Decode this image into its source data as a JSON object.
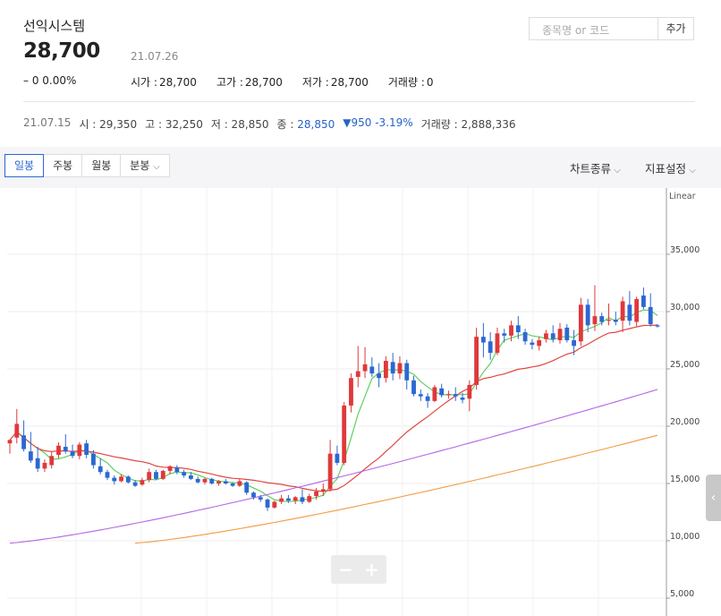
{
  "stock": {
    "name": "선익시스템",
    "price": "28,700",
    "date": "21.07.26",
    "change": "– 0  0.00%",
    "stats": [
      {
        "label": "시가 :",
        "value": "28,700"
      },
      {
        "label": "고가 :",
        "value": "28,700"
      },
      {
        "label": "저가 :",
        "value": "28,700"
      },
      {
        "label": "거래량 :",
        "value": "0"
      }
    ]
  },
  "search": {
    "placeholder": "종목명 or 코드",
    "add_label": "추가"
  },
  "prev_day": {
    "date": "21.07.15",
    "open": "시 : 29,350",
    "high": "고 : 32,250",
    "low": "저 : 28,850",
    "close_label": "종 :",
    "close": "28,850",
    "diff": "▼950 -3.19%",
    "volume": "거래량 : 2,888,336"
  },
  "toolbar": {
    "tabs": [
      "일봉",
      "주봉",
      "월봉",
      "분봉"
    ],
    "chart_type": "차트종류",
    "indicator": "지표설정"
  },
  "colors": {
    "up": "#e0383b",
    "down": "#2b68d1",
    "ma5": "#5fcf5f",
    "ma20": "#e0473f",
    "ma60": "#b266e8",
    "ma120": "#f39a42"
  },
  "chart_data": {
    "type": "candlestick",
    "scale_label": "Linear",
    "y_ticks": [
      5000,
      10000,
      15000,
      20000,
      25000,
      30000,
      35000
    ],
    "y_tick_labels": [
      "5,000",
      "10,000",
      "15,000",
      "20,000",
      "25,000",
      "30,000",
      "35,000"
    ],
    "ylim": [
      5000,
      40000
    ],
    "candles": [
      [
        18500,
        18800,
        17600,
        18800
      ],
      [
        19000,
        21500,
        18500,
        20200
      ],
      [
        19200,
        20500,
        17800,
        18000
      ],
      [
        17800,
        19500,
        16800,
        17000
      ],
      [
        17200,
        18200,
        16000,
        16300
      ],
      [
        16300,
        17100,
        16000,
        16800
      ],
      [
        16600,
        17800,
        16300,
        17400
      ],
      [
        17500,
        18600,
        17200,
        18300
      ],
      [
        18200,
        19300,
        17600,
        17800
      ],
      [
        17800,
        18400,
        17200,
        17400
      ],
      [
        17400,
        18600,
        17100,
        18400
      ],
      [
        18500,
        18800,
        17200,
        17500
      ],
      [
        17600,
        17900,
        16300,
        16600
      ],
      [
        16500,
        17200,
        15800,
        16000
      ],
      [
        16000,
        16200,
        15300,
        15500
      ],
      [
        15500,
        15700,
        14900,
        15200
      ],
      [
        15200,
        15800,
        15100,
        15600
      ],
      [
        15600,
        15700,
        15000,
        15100
      ],
      [
        15100,
        15300,
        14700,
        14800
      ],
      [
        14900,
        15500,
        14800,
        15300
      ],
      [
        15300,
        16300,
        15100,
        16000
      ],
      [
        16000,
        16200,
        15300,
        15400
      ],
      [
        15400,
        16200,
        15300,
        16100
      ],
      [
        16100,
        16600,
        15800,
        16500
      ],
      [
        16400,
        16600,
        15800,
        16000
      ],
      [
        16000,
        16200,
        15500,
        15700
      ],
      [
        15700,
        16000,
        15300,
        15400
      ],
      [
        15400,
        15600,
        15000,
        15100
      ],
      [
        15100,
        15500,
        14900,
        15400
      ],
      [
        15400,
        15500,
        14900,
        15000
      ],
      [
        15000,
        15300,
        14800,
        15200
      ],
      [
        15200,
        15400,
        14900,
        15000
      ],
      [
        15000,
        15100,
        14700,
        14800
      ],
      [
        14800,
        15400,
        14700,
        15200
      ],
      [
        15100,
        15200,
        14000,
        14200
      ],
      [
        14200,
        14300,
        13600,
        13800
      ],
      [
        13800,
        14000,
        13400,
        13600
      ],
      [
        13600,
        13700,
        12600,
        12900
      ],
      [
        12900,
        13500,
        12800,
        13400
      ],
      [
        13400,
        14000,
        13200,
        13700
      ],
      [
        13700,
        14000,
        13300,
        13500
      ],
      [
        13500,
        13900,
        13200,
        13800
      ],
      [
        13800,
        14500,
        13200,
        13400
      ],
      [
        13400,
        14100,
        13300,
        13900
      ],
      [
        13900,
        14600,
        13600,
        14300
      ],
      [
        14300,
        15000,
        13900,
        14500
      ],
      [
        14500,
        18800,
        14300,
        17600
      ],
      [
        17600,
        18300,
        16600,
        16800
      ],
      [
        16800,
        22100,
        16600,
        21800
      ],
      [
        21800,
        24600,
        21200,
        24200
      ],
      [
        24300,
        27000,
        23400,
        24800
      ],
      [
        24800,
        26900,
        24200,
        25400
      ],
      [
        25200,
        26000,
        24300,
        24600
      ],
      [
        24600,
        25500,
        23400,
        24200
      ],
      [
        24200,
        26100,
        23800,
        25700
      ],
      [
        25600,
        26400,
        24000,
        24600
      ],
      [
        24600,
        26100,
        24100,
        25500
      ],
      [
        25500,
        25800,
        23200,
        24000
      ],
      [
        24000,
        24400,
        22600,
        22800
      ],
      [
        22800,
        23200,
        22200,
        22600
      ],
      [
        22600,
        22900,
        21600,
        22200
      ],
      [
        22200,
        23600,
        22100,
        23400
      ],
      [
        23300,
        23700,
        22500,
        22700
      ],
      [
        22700,
        23100,
        22400,
        22800
      ],
      [
        22800,
        23400,
        22200,
        22600
      ],
      [
        22500,
        22900,
        22000,
        22300
      ],
      [
        22400,
        24000,
        21300,
        23600
      ],
      [
        23600,
        28600,
        23200,
        27800
      ],
      [
        27800,
        29000,
        26000,
        27300
      ],
      [
        27400,
        28200,
        25800,
        26400
      ],
      [
        26400,
        28600,
        26200,
        28100
      ],
      [
        28100,
        28500,
        27300,
        27900
      ],
      [
        27900,
        29200,
        27400,
        28800
      ],
      [
        28800,
        29600,
        27600,
        28200
      ],
      [
        28200,
        28500,
        27100,
        27400
      ],
      [
        27300,
        27600,
        26700,
        27100
      ],
      [
        27000,
        27800,
        26600,
        27500
      ],
      [
        27600,
        28400,
        27300,
        28100
      ],
      [
        28100,
        28800,
        27300,
        27600
      ],
      [
        27500,
        29000,
        27200,
        28500
      ],
      [
        28600,
        28900,
        27300,
        27500
      ],
      [
        27500,
        28400,
        26200,
        27000
      ],
      [
        27400,
        31200,
        27000,
        30600
      ],
      [
        30600,
        31100,
        28200,
        28800
      ],
      [
        28900,
        32300,
        28300,
        29600
      ],
      [
        29600,
        29900,
        28800,
        29100
      ],
      [
        29200,
        30700,
        28800,
        29300
      ],
      [
        29300,
        30000,
        28800,
        29100
      ],
      [
        29200,
        31300,
        28200,
        30900
      ],
      [
        30600,
        31800,
        28800,
        29200
      ],
      [
        29100,
        31300,
        28700,
        31100
      ],
      [
        31400,
        32100,
        30200,
        30400
      ],
      [
        30400,
        31600,
        28700,
        28900
      ],
      [
        28800,
        28900,
        28600,
        28700
      ]
    ],
    "ma5": [
      15800,
      16900,
      17800,
      18300,
      18600,
      18900,
      19000,
      19100,
      19000,
      18800,
      18500,
      18000,
      17600,
      17200,
      16900,
      16700,
      16400,
      16200,
      16000,
      15800
    ],
    "ma20": [
      13000,
      13700,
      14300,
      14800,
      15200,
      15700,
      16000,
      16300,
      16500,
      16700,
      16800,
      16900,
      16900,
      16800,
      16700,
      16600,
      16400,
      16200,
      16000,
      15800
    ],
    "ma60": [
      9800,
      10200,
      10600,
      11000,
      11400,
      11800,
      12100,
      12400,
      12700,
      13000,
      13300,
      13500,
      13700,
      13900,
      14100,
      14300,
      14500,
      14600,
      14700,
      14900
    ],
    "ma120": [
      null,
      null,
      null,
      null,
      null,
      null,
      null,
      null,
      null,
      null,
      9800,
      10000,
      10200,
      10400,
      10600,
      10800,
      11000,
      11200,
      11400,
      11600
    ]
  },
  "zoom": {
    "minus": "−",
    "plus": "+"
  },
  "side_handle": "‹"
}
